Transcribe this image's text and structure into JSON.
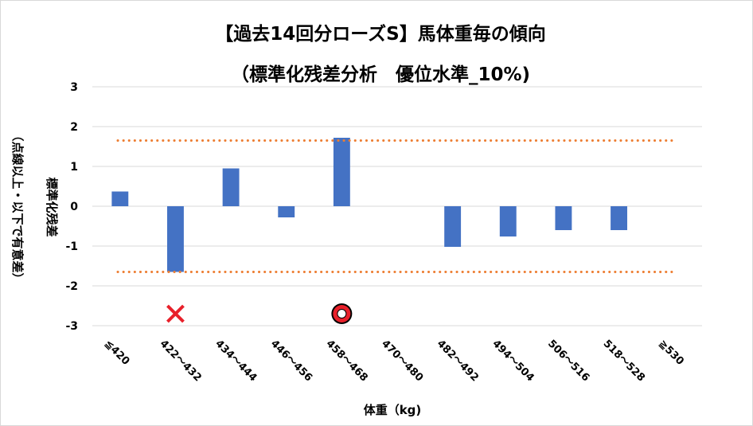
{
  "chart_data": {
    "type": "bar",
    "title": "【過去14回分ローズS】馬体重毎の傾向",
    "subtitle": "（標準化残差分析　優位水準_10%)",
    "xlabel": "体重（kg)",
    "ylabel": "標準化残差",
    "ylabel_note": "（点線以上・以下で有意差）",
    "categories": [
      "≦420",
      "422～432",
      "434～444",
      "446～456",
      "458～468",
      "470～480",
      "482～492",
      "494～504",
      "506～516",
      "518～528",
      "≧530"
    ],
    "values": [
      0.37,
      -1.65,
      0.95,
      -0.28,
      1.72,
      0,
      -1.02,
      -0.76,
      -0.6,
      -0.6,
      0
    ],
    "ylim": [
      -3,
      3
    ],
    "yticks": [
      3,
      2,
      1,
      0,
      -1,
      -2,
      -3
    ],
    "threshold_upper": 1.65,
    "threshold_lower": -1.65,
    "grid": true,
    "markers": [
      {
        "category": "422～432",
        "symbol": "✕",
        "y": -2.7
      },
      {
        "category": "458～468",
        "symbol": "◎",
        "y": -2.7
      }
    ],
    "colors": {
      "bar": "#4472c4",
      "threshold": "#ed7d31",
      "grid": "#d9d9d9",
      "cross": "#e8202a",
      "circle": "#e8202a"
    }
  }
}
